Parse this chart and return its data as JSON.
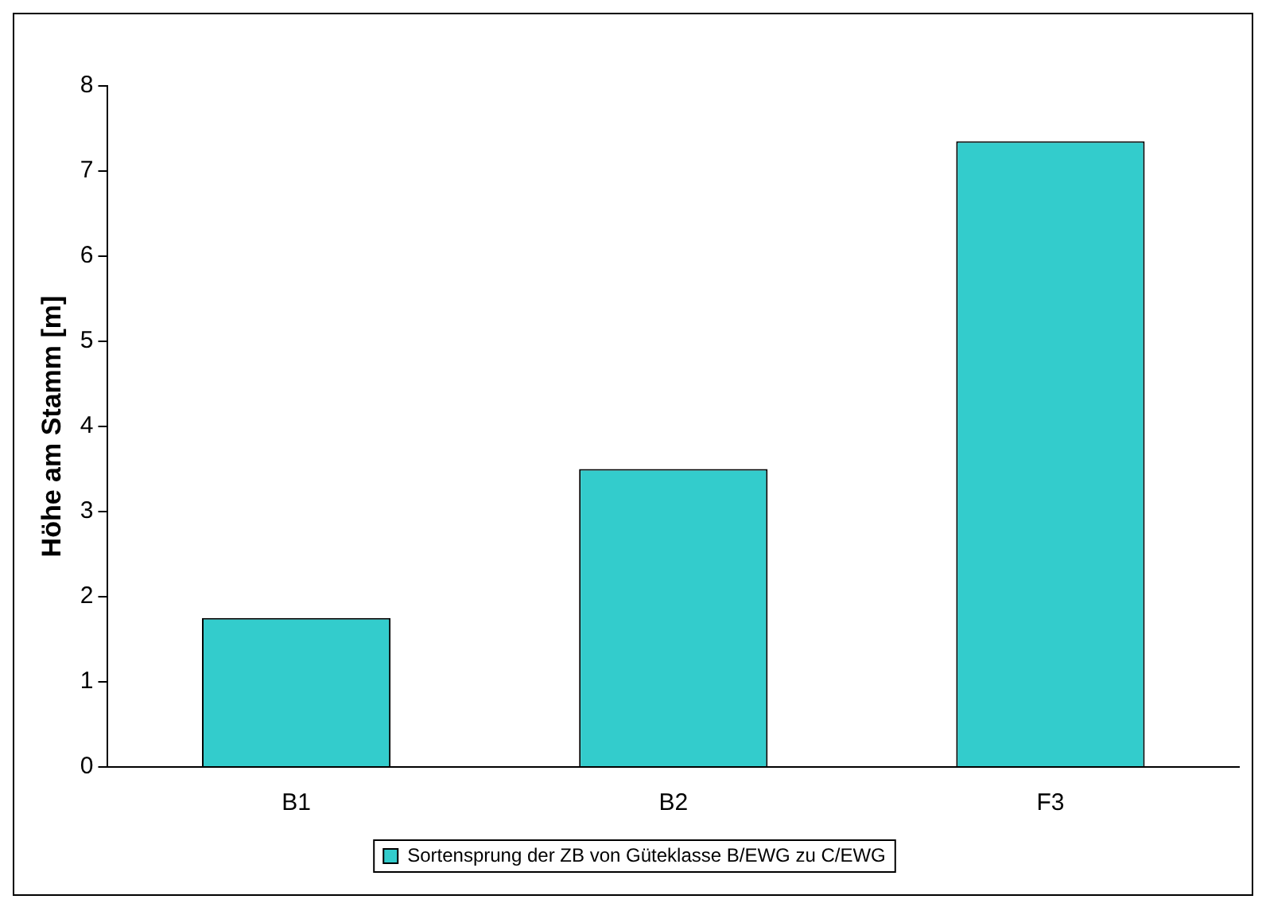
{
  "chart_data": {
    "type": "bar",
    "ylabel": "Höhe am Stamm [m]",
    "categories": [
      "B1",
      "B2",
      "F3"
    ],
    "series": [
      {
        "name": "Sortensprung der ZB von Güteklasse B/EWG zu C/EWG",
        "color": "#33cccc",
        "values": [
          1.75,
          3.5,
          7.35
        ]
      }
    ],
    "ylim": [
      0,
      8
    ],
    "yticks": [
      0,
      1,
      2,
      3,
      4,
      5,
      6,
      7,
      8
    ],
    "grid": false,
    "legend": "bottom"
  }
}
